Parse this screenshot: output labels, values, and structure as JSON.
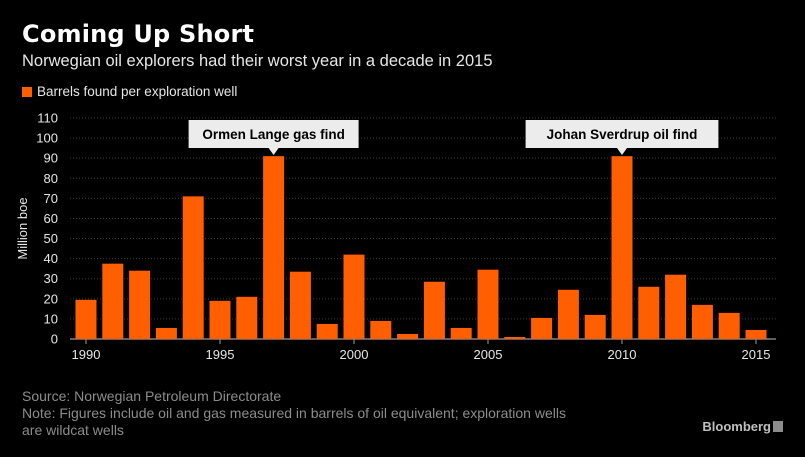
{
  "colors": {
    "background": "#000000",
    "bar": "#ff5f00",
    "grid": "#3a3a3a",
    "annotation_bg": "#ececec"
  },
  "brand": "Bloomberg",
  "source_line": "Source: Norwegian Petroleum Directorate",
  "note_line1": "Note: Figures include oil and gas measured in barrels of oil equivalent; exploration wells",
  "note_line2": "are wildcat wells",
  "chart_data": {
    "type": "bar",
    "title": "Coming Up Short",
    "subtitle": "Norwegian oil explorers had their worst year in a decade in 2015",
    "legend": [
      "Barrels found per exploration well"
    ],
    "ylabel": "Million boe",
    "xlabel": "",
    "ylim": [
      0,
      110
    ],
    "yticks": [
      0,
      10,
      20,
      30,
      40,
      50,
      60,
      70,
      80,
      90,
      100,
      110
    ],
    "xticks": [
      1990,
      1995,
      2000,
      2005,
      2010,
      2015
    ],
    "categories": [
      1990,
      1991,
      1992,
      1993,
      1994,
      1995,
      1996,
      1997,
      1998,
      1999,
      2000,
      2001,
      2002,
      2003,
      2004,
      2005,
      2006,
      2007,
      2008,
      2009,
      2010,
      2011,
      2012,
      2013,
      2014,
      2015
    ],
    "values": [
      19.5,
      37.5,
      34,
      5.5,
      71,
      19,
      21,
      91,
      33.5,
      7.5,
      42,
      9,
      2.5,
      28.5,
      5.5,
      34.5,
      1,
      10.5,
      24.5,
      12,
      91,
      26,
      32,
      17,
      13,
      4.5
    ],
    "grid": true,
    "annotations": [
      {
        "text": "Ormen Lange gas find",
        "x": 1997
      },
      {
        "text": "Johan Sverdrup oil find",
        "x": 2010
      }
    ]
  }
}
